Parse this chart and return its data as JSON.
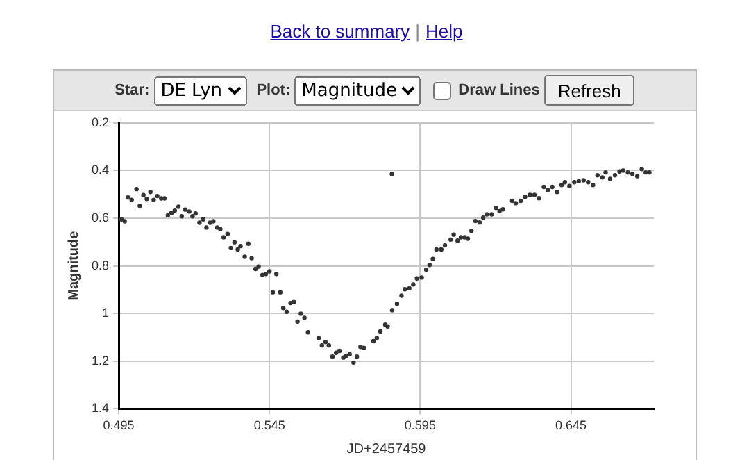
{
  "chart_data": {
    "type": "scatter",
    "xlabel": "JD+2457459",
    "ylabel": "Magnitude",
    "annotations": [
      "Back to summary",
      "|",
      "Help",
      "Star:",
      "DE Lyn",
      "Plot:",
      "Magnitude",
      "Draw Lines",
      "Refresh"
    ],
    "xlim": [
      0.495,
      0.6725
    ],
    "xticks": [
      0.495,
      0.545,
      0.595,
      0.645
    ],
    "ylim": [
      1.4,
      0.2
    ],
    "yticks": [
      0.2,
      0.4,
      0.6,
      0.8,
      1,
      1.2,
      1.4
    ],
    "grid": true,
    "legend": false,
    "marker": "circle",
    "series": [
      {
        "color": "#333333",
        "x": [
          0.4959,
          0.497,
          0.4981,
          0.4993,
          0.5009,
          0.502,
          0.5032,
          0.5043,
          0.5055,
          0.5066,
          0.5078,
          0.5091,
          0.5102,
          0.5113,
          0.5125,
          0.5136,
          0.5148,
          0.5159,
          0.5171,
          0.5184,
          0.5195,
          0.5205,
          0.5218,
          0.523,
          0.5241,
          0.5253,
          0.5264,
          0.5277,
          0.5287,
          0.5298,
          0.5311,
          0.5322,
          0.5334,
          0.5345,
          0.5354,
          0.5368,
          0.538,
          0.5391,
          0.5404,
          0.5414,
          0.5427,
          0.5438,
          0.545,
          0.5461,
          0.5473,
          0.5486,
          0.5496,
          0.5507,
          0.552,
          0.5531,
          0.5543,
          0.5554,
          0.5566,
          0.5578,
          0.5613,
          0.5624,
          0.5636,
          0.5647,
          0.5659,
          0.5671,
          0.5682,
          0.5695,
          0.5705,
          0.5716,
          0.5729,
          0.574,
          0.5752,
          0.5763,
          0.5795,
          0.5806,
          0.5818,
          0.5834,
          0.5842,
          0.5857,
          0.5873,
          0.5856,
          0.5888,
          0.5899,
          0.5914,
          0.5927,
          0.5939,
          0.5955,
          0.597,
          0.5981,
          0.5992,
          0.6004,
          0.602,
          0.6032,
          0.6051,
          0.6061,
          0.6074,
          0.6085,
          0.6097,
          0.6108,
          0.612,
          0.6133,
          0.6147,
          0.6159,
          0.6171,
          0.6187,
          0.6202,
          0.6213,
          0.6224,
          0.6255,
          0.6267,
          0.6283,
          0.6298,
          0.6314,
          0.6329,
          0.6344,
          0.636,
          0.6373,
          0.6388,
          0.6404,
          0.6419,
          0.643,
          0.6445,
          0.6461,
          0.6476,
          0.6492,
          0.6507,
          0.6523,
          0.6538,
          0.6554,
          0.6565,
          0.658,
          0.6596,
          0.6611,
          0.6623,
          0.6639,
          0.6654,
          0.667,
          0.6685,
          0.6698,
          0.671
        ],
        "values": [
          0.605,
          0.613,
          0.513,
          0.523,
          0.478,
          0.548,
          0.503,
          0.519,
          0.49,
          0.523,
          0.507,
          0.517,
          0.517,
          0.588,
          0.578,
          0.568,
          0.552,
          0.592,
          0.564,
          0.572,
          0.592,
          0.58,
          0.619,
          0.605,
          0.639,
          0.619,
          0.613,
          0.639,
          0.646,
          0.68,
          0.666,
          0.725,
          0.701,
          0.731,
          0.717,
          0.762,
          0.707,
          0.768,
          0.813,
          0.803,
          0.838,
          0.834,
          0.823,
          0.911,
          0.834,
          0.911,
          0.977,
          0.993,
          0.956,
          0.952,
          1.034,
          1.001,
          1.018,
          1.079,
          1.103,
          1.134,
          1.12,
          1.134,
          1.181,
          1.165,
          1.157,
          1.185,
          1.177,
          1.171,
          1.206,
          1.181,
          1.14,
          1.144,
          1.116,
          1.103,
          1.075,
          1.047,
          1.054,
          0.986,
          0.959,
          0.415,
          0.925,
          0.898,
          0.894,
          0.878,
          0.853,
          0.849,
          0.816,
          0.796,
          0.771,
          0.731,
          0.731,
          0.714,
          0.69,
          0.669,
          0.694,
          0.68,
          0.68,
          0.686,
          0.653,
          0.612,
          0.618,
          0.598,
          0.584,
          0.584,
          0.557,
          0.571,
          0.563,
          0.527,
          0.537,
          0.527,
          0.51,
          0.502,
          0.502,
          0.516,
          0.469,
          0.482,
          0.469,
          0.49,
          0.461,
          0.449,
          0.465,
          0.449,
          0.445,
          0.441,
          0.449,
          0.461,
          0.42,
          0.429,
          0.408,
          0.435,
          0.42,
          0.404,
          0.4,
          0.408,
          0.414,
          0.424,
          0.394,
          0.408,
          0.408
        ]
      }
    ]
  }
}
